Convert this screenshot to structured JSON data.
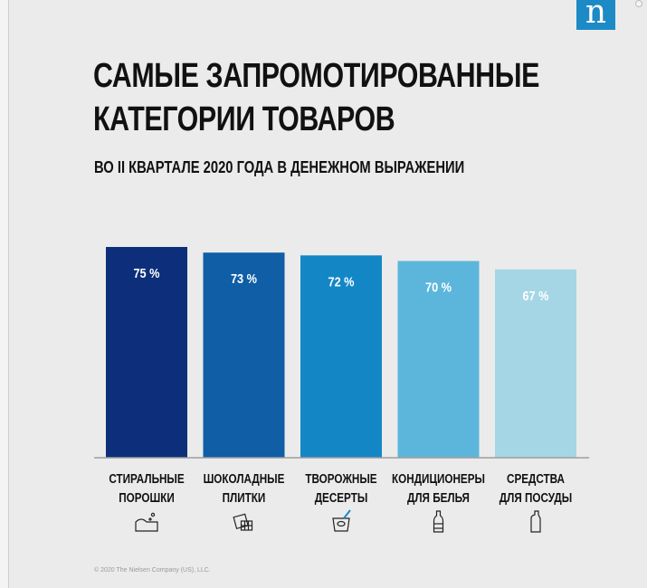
{
  "header": {
    "title_line1": "САМЫЕ ЗАПРОМОТИРОВАННЫЕ",
    "title_line2": "КАТЕГОРИИ ТОВАРОВ",
    "subtitle": "ВО II КВАРТАЛЕ 2020 ГОДА В ДЕНЕЖНОМ ВЫРАЖЕНИИ",
    "logo_letter": "n"
  },
  "footer": {
    "copyright": "© 2020 The Nielsen Company (US), LLC."
  },
  "chart_data": {
    "type": "bar",
    "categories": [
      [
        "СТИРАЛЬНЫЕ",
        "ПОРОШКИ"
      ],
      [
        "ШОКОЛАДНЫЕ",
        "ПЛИТКИ"
      ],
      [
        "ТВОРОЖНЫЕ",
        "ДЕСЕРТЫ"
      ],
      [
        "КОНДИЦИОНЕРЫ",
        "ДЛЯ БЕЛЬЯ"
      ],
      [
        "СРЕДСТВА",
        "ДЛЯ ПОСУДЫ"
      ]
    ],
    "values": [
      75,
      73,
      72,
      70,
      67
    ],
    "value_labels": [
      "75 %",
      "73 %",
      "72 %",
      "70 %",
      "67 %"
    ],
    "bar_colors": [
      "#0d2f7b",
      "#0f5ea6",
      "#1387c6",
      "#5cb6db",
      "#a5d6e6"
    ],
    "ylim": [
      0,
      75
    ],
    "grid": false,
    "icons": [
      "washing-powder-icon",
      "chocolate-bar-icon",
      "yogurt-cup-icon",
      "softener-bottle-icon",
      "dish-detergent-icon"
    ]
  }
}
